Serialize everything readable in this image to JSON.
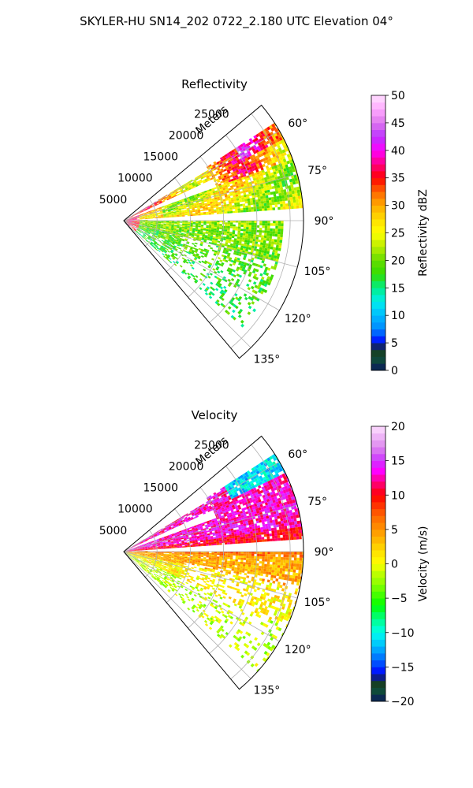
{
  "figure": {
    "title": "SKYLER-HU  SN14_202  0722_2.180 UTC Elevation 04°"
  },
  "chart_data": [
    {
      "type": "heatmap",
      "projection": "polar-sector",
      "title": "Reflectivity",
      "radial_label": "Meters",
      "radial_ticks": [
        5000,
        10000,
        15000,
        20000,
        25000
      ],
      "radial_tick_labels": [
        "5000",
        "10000",
        "15000",
        "20000",
        "25000"
      ],
      "rmax": 27000,
      "angle_ticks": [
        60,
        75,
        90,
        105,
        120,
        135
      ],
      "angle_tick_labels": [
        "60°",
        "75°",
        "90°",
        "105°",
        "120°",
        "135°"
      ],
      "angle_range": [
        50,
        140
      ],
      "grid": true,
      "colorbar": {
        "label": "Reflectivity dBZ",
        "min": 0,
        "max": 50,
        "ticks": [
          0,
          5,
          10,
          15,
          20,
          25,
          30,
          35,
          40,
          45,
          50
        ],
        "tick_labels": [
          "0",
          "5",
          "10",
          "15",
          "20",
          "25",
          "30",
          "35",
          "40",
          "45",
          "50"
        ],
        "stops": [
          [
            0,
            "#0a1a5e"
          ],
          [
            2,
            "#0f4a3a"
          ],
          [
            4,
            "#1a3a1a"
          ],
          [
            5,
            "#0000ff"
          ],
          [
            7.5,
            "#0088ff"
          ],
          [
            10,
            "#00bbff"
          ],
          [
            12.5,
            "#00eeee"
          ],
          [
            15,
            "#00ee88"
          ],
          [
            17.5,
            "#33dd00"
          ],
          [
            20,
            "#66dd00"
          ],
          [
            22.5,
            "#bbee00"
          ],
          [
            25,
            "#ffff00"
          ],
          [
            27.5,
            "#ffdd00"
          ],
          [
            30,
            "#ffaa00"
          ],
          [
            32.5,
            "#ff6600"
          ],
          [
            35,
            "#ff0000"
          ],
          [
            37.5,
            "#ff0080"
          ],
          [
            40,
            "#ff00ff"
          ],
          [
            42.5,
            "#bb33ff"
          ],
          [
            45,
            "#dd77ee"
          ],
          [
            47.5,
            "#ffaaff"
          ],
          [
            50,
            "#ffe0ff"
          ]
        ]
      },
      "field": "reflectivity"
    },
    {
      "type": "heatmap",
      "projection": "polar-sector",
      "title": "Velocity",
      "radial_label": "Meters",
      "radial_ticks": [
        5000,
        10000,
        15000,
        20000,
        25000
      ],
      "radial_tick_labels": [
        "5000",
        "10000",
        "15000",
        "20000",
        "25000"
      ],
      "rmax": 27000,
      "angle_ticks": [
        60,
        75,
        90,
        105,
        120,
        135
      ],
      "angle_tick_labels": [
        "60°",
        "75°",
        "90°",
        "105°",
        "120°",
        "135°"
      ],
      "angle_range": [
        50,
        140
      ],
      "grid": true,
      "colorbar": {
        "label": "Velocity (m/s)",
        "min": -20,
        "max": 20,
        "ticks": [
          -20,
          -15,
          -10,
          -5,
          0,
          5,
          10,
          15,
          20
        ],
        "tick_labels": [
          "−20",
          "−15",
          "−10",
          "−5",
          "0",
          "5",
          "10",
          "15",
          "20"
        ],
        "stops": [
          [
            -20,
            "#0a1a5e"
          ],
          [
            -18.5,
            "#0f4a3a"
          ],
          [
            -17,
            "#1a3a1a"
          ],
          [
            -16,
            "#0000ff"
          ],
          [
            -14,
            "#0066ff"
          ],
          [
            -12,
            "#00bbff"
          ],
          [
            -10,
            "#00ffee"
          ],
          [
            -8,
            "#00ff88"
          ],
          [
            -6,
            "#00ff00"
          ],
          [
            -3,
            "#88ff00"
          ],
          [
            -1,
            "#ccff00"
          ],
          [
            0,
            "#ffff00"
          ],
          [
            2,
            "#ffdd00"
          ],
          [
            4,
            "#ffaa00"
          ],
          [
            7,
            "#ff6600"
          ],
          [
            10,
            "#ff0000"
          ],
          [
            12,
            "#ff0088"
          ],
          [
            13.5,
            "#ff00ff"
          ],
          [
            15,
            "#cc33ff"
          ],
          [
            17,
            "#dd88ee"
          ],
          [
            20,
            "#ffe0ff"
          ]
        ]
      },
      "field": "velocity"
    }
  ]
}
